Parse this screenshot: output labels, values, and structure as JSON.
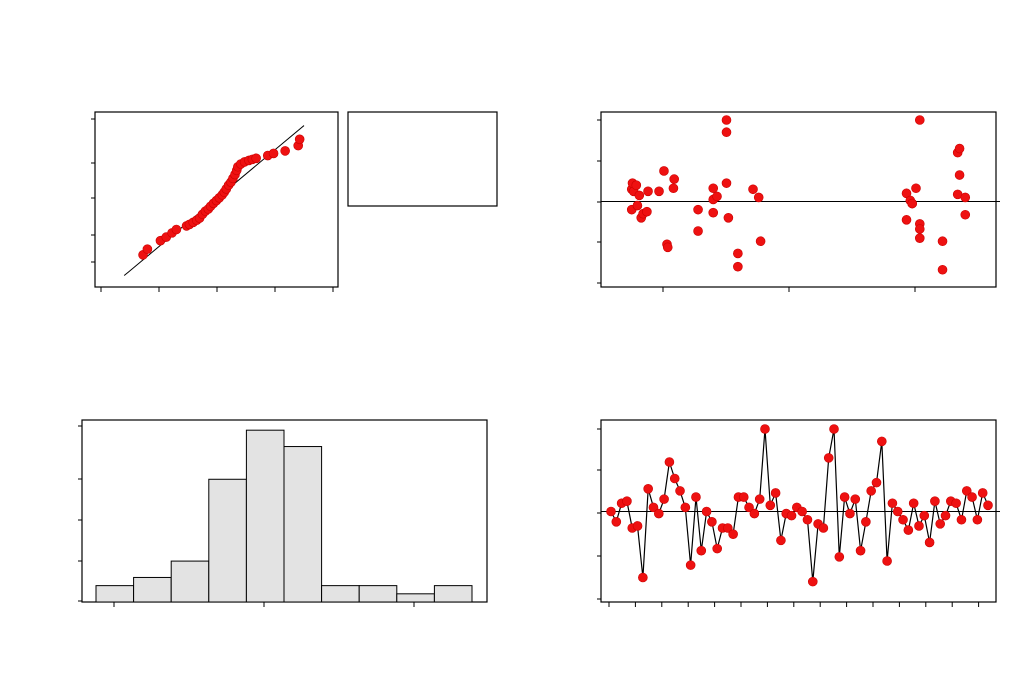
{
  "chart_data": [
    {
      "type": "scatter",
      "subtype": "normal-probability-plot",
      "title": "",
      "xlabel": "",
      "ylabel": "",
      "xlim": [
        -4,
        4
      ],
      "ylim": [
        -4,
        4
      ],
      "points": [
        {
          "x": -2.55,
          "y": -2.62
        },
        {
          "x": -2.4,
          "y": -2.35
        },
        {
          "x": -1.95,
          "y": -1.95
        },
        {
          "x": -1.75,
          "y": -1.78
        },
        {
          "x": -1.55,
          "y": -1.58
        },
        {
          "x": -1.4,
          "y": -1.42
        },
        {
          "x": -1.05,
          "y": -1.25
        },
        {
          "x": -0.95,
          "y": -1.18
        },
        {
          "x": -0.82,
          "y": -1.08
        },
        {
          "x": -0.7,
          "y": -0.98
        },
        {
          "x": -0.6,
          "y": -0.88
        },
        {
          "x": -0.5,
          "y": -0.7
        },
        {
          "x": -0.4,
          "y": -0.55
        },
        {
          "x": -0.3,
          "y": -0.45
        },
        {
          "x": -0.22,
          "y": -0.32
        },
        {
          "x": -0.12,
          "y": -0.18
        },
        {
          "x": -0.02,
          "y": -0.05
        },
        {
          "x": 0.08,
          "y": 0.08
        },
        {
          "x": 0.18,
          "y": 0.22
        },
        {
          "x": 0.25,
          "y": 0.35
        },
        {
          "x": 0.32,
          "y": 0.5
        },
        {
          "x": 0.4,
          "y": 0.68
        },
        {
          "x": 0.48,
          "y": 0.82
        },
        {
          "x": 0.55,
          "y": 1.0
        },
        {
          "x": 0.62,
          "y": 1.18
        },
        {
          "x": 0.68,
          "y": 1.38
        },
        {
          "x": 0.72,
          "y": 1.55
        },
        {
          "x": 0.82,
          "y": 1.68
        },
        {
          "x": 0.95,
          "y": 1.78
        },
        {
          "x": 1.1,
          "y": 1.85
        },
        {
          "x": 1.22,
          "y": 1.9
        },
        {
          "x": 1.35,
          "y": 1.95
        },
        {
          "x": 1.75,
          "y": 2.08
        },
        {
          "x": 1.95,
          "y": 2.18
        },
        {
          "x": 2.35,
          "y": 2.3
        },
        {
          "x": 2.8,
          "y": 2.55
        },
        {
          "x": 2.85,
          "y": 2.85
        }
      ],
      "fit_line": {
        "x": [
          -3.2,
          3.0
        ],
        "y": [
          -3.6,
          3.5
        ]
      }
    },
    {
      "type": "scatter",
      "subtype": "residuals-vs-fits",
      "title": "",
      "xlabel": "",
      "ylabel": "",
      "xlim": [
        0,
        100
      ],
      "ylim": [
        -4,
        4
      ],
      "reference_line": 0,
      "points": [
        {
          "x": 6,
          "y": 0.6
        },
        {
          "x": 6.2,
          "y": 0.9
        },
        {
          "x": 6.5,
          "y": 0.5
        },
        {
          "x": 7.2,
          "y": 0.8
        },
        {
          "x": 6,
          "y": -0.4
        },
        {
          "x": 7.5,
          "y": -0.2
        },
        {
          "x": 8,
          "y": 0.3
        },
        {
          "x": 8.5,
          "y": -0.8
        },
        {
          "x": 9,
          "y": -0.6
        },
        {
          "x": 10,
          "y": -0.5
        },
        {
          "x": 10.3,
          "y": 0.5
        },
        {
          "x": 13.2,
          "y": 0.5
        },
        {
          "x": 14.5,
          "y": 1.5
        },
        {
          "x": 17.2,
          "y": 1.1
        },
        {
          "x": 17,
          "y": 0.65
        },
        {
          "x": 15.3,
          "y": -2.1
        },
        {
          "x": 15.5,
          "y": -2.25
        },
        {
          "x": 23.5,
          "y": -0.4
        },
        {
          "x": 23.5,
          "y": -1.45
        },
        {
          "x": 27.5,
          "y": -0.55
        },
        {
          "x": 27.5,
          "y": 0.1
        },
        {
          "x": 27.5,
          "y": 0.65
        },
        {
          "x": 28.5,
          "y": 0.25
        },
        {
          "x": 31,
          "y": 0.9
        },
        {
          "x": 31,
          "y": 4.0
        },
        {
          "x": 31,
          "y": 3.4
        },
        {
          "x": 31.5,
          "y": -0.8
        },
        {
          "x": 34,
          "y": -2.55
        },
        {
          "x": 34,
          "y": -3.2
        },
        {
          "x": 38,
          "y": 0.6
        },
        {
          "x": 39.5,
          "y": 0.2
        },
        {
          "x": 40,
          "y": -1.95
        },
        {
          "x": 78.5,
          "y": 0.4
        },
        {
          "x": 79.5,
          "y": 0.05
        },
        {
          "x": 80,
          "y": -0.1
        },
        {
          "x": 80,
          "y": -0.1
        },
        {
          "x": 81,
          "y": 0.65
        },
        {
          "x": 78.5,
          "y": -0.9
        },
        {
          "x": 82,
          "y": -1.1
        },
        {
          "x": 82,
          "y": -1.35
        },
        {
          "x": 82,
          "y": -1.8
        },
        {
          "x": 82,
          "y": 4.0
        },
        {
          "x": 88,
          "y": -1.95
        },
        {
          "x": 88,
          "y": -3.35
        },
        {
          "x": 92,
          "y": 2.4
        },
        {
          "x": 92.5,
          "y": 2.6
        },
        {
          "x": 92.5,
          "y": 1.3
        },
        {
          "x": 92,
          "y": 0.35
        },
        {
          "x": 94,
          "y": 0.2
        },
        {
          "x": 94,
          "y": -0.65
        }
      ]
    },
    {
      "type": "bar",
      "subtype": "histogram",
      "title": "",
      "xlabel": "",
      "ylabel": "",
      "bins": 10,
      "values": [
        2,
        3,
        5,
        15,
        21,
        19,
        2,
        2,
        1,
        2
      ],
      "ylim": [
        0,
        22
      ]
    },
    {
      "type": "line",
      "subtype": "residuals-vs-order",
      "title": "",
      "xlabel": "",
      "ylabel": "",
      "ylim": [
        -4,
        4
      ],
      "reference_line": 0,
      "values": [
        0.0,
        -0.5,
        0.4,
        0.5,
        -0.8,
        -0.7,
        -3.2,
        1.1,
        0.2,
        -0.1,
        0.6,
        2.4,
        1.6,
        1.0,
        0.2,
        -2.6,
        0.7,
        -1.9,
        0.0,
        -0.5,
        -1.8,
        -0.8,
        -0.8,
        -1.1,
        0.7,
        0.7,
        0.2,
        -0.1,
        0.6,
        4.0,
        0.3,
        0.9,
        -1.4,
        -0.1,
        -0.2,
        0.2,
        0.0,
        -0.4,
        -3.4,
        -0.6,
        -0.8,
        2.6,
        4.0,
        -2.2,
        0.7,
        -0.1,
        0.6,
        -1.9,
        -0.5,
        1.0,
        1.4,
        3.4,
        -2.4,
        0.4,
        0.0,
        -0.4,
        -0.9,
        0.4,
        -0.7,
        -0.2,
        -1.5,
        0.5,
        -0.6,
        -0.2,
        0.5,
        0.4,
        -0.4,
        1.0,
        0.7,
        -0.4,
        0.9,
        0.3
      ]
    }
  ]
}
